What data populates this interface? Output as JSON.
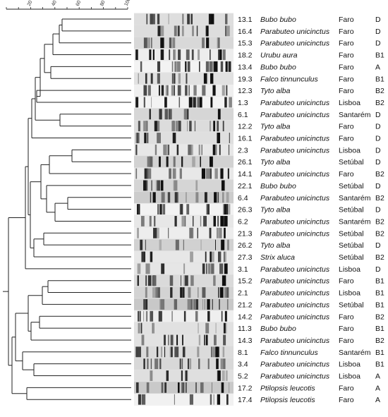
{
  "scale": {
    "ticks": [
      "20",
      "40",
      "60",
      "80",
      "100"
    ]
  },
  "isolates": [
    {
      "id": "13.1",
      "species": "Bubo bubo",
      "location": "Faro",
      "group": "D"
    },
    {
      "id": "16.4",
      "species": "Parabuteo unicinctus",
      "location": "Faro",
      "group": "D"
    },
    {
      "id": "15.3",
      "species": "Parabuteo unicinctus",
      "location": "Faro",
      "group": "D"
    },
    {
      "id": "18.2",
      "species": "Urubu aura",
      "location": "Faro",
      "group": "B1"
    },
    {
      "id": "13.4",
      "species": "Bubo bubo",
      "location": "Faro",
      "group": "A"
    },
    {
      "id": "19.3",
      "species": "Falco tinnunculus",
      "location": "Faro",
      "group": "B1"
    },
    {
      "id": "12.3",
      "species": "Tyto alba",
      "location": "Faro",
      "group": "B2"
    },
    {
      "id": "1.3",
      "species": "Parabuteo unicinctus",
      "location": "Lisboa",
      "group": "B2"
    },
    {
      "id": "6.1",
      "species": "Parabuteo unicinctus",
      "location": "Santarém",
      "group": "D"
    },
    {
      "id": "12.2",
      "species": "Tyto alba",
      "location": "Faro",
      "group": "D"
    },
    {
      "id": "16.1",
      "species": "Parabuteo unicinctus",
      "location": "Faro",
      "group": "D"
    },
    {
      "id": "2.3",
      "species": "Parabuteo unicinctus",
      "location": "Lisboa",
      "group": "D"
    },
    {
      "id": "26.1",
      "species": "Tyto alba",
      "location": "Setúbal",
      "group": "D"
    },
    {
      "id": "14.1",
      "species": "Parabuteo unicinctus",
      "location": "Faro",
      "group": "B2"
    },
    {
      "id": "22.1",
      "species": "Bubo bubo",
      "location": "Setúbal",
      "group": "D"
    },
    {
      "id": "6.4",
      "species": "Parabuteo unicinctus",
      "location": "Santarém",
      "group": "B2"
    },
    {
      "id": "26.3",
      "species": "Tyto alba",
      "location": "Setúbal",
      "group": "D"
    },
    {
      "id": "6.2",
      "species": "Parabuteo unicinctus",
      "location": "Santarém",
      "group": "B2"
    },
    {
      "id": "21.3",
      "species": "Parabuteo unicinctus",
      "location": "Setúbal",
      "group": "B2"
    },
    {
      "id": "26.2",
      "species": "Tyto alba",
      "location": "Setúbal",
      "group": "D"
    },
    {
      "id": "27.3",
      "species": "Strix aluca",
      "location": "Setúbal",
      "group": "B2"
    },
    {
      "id": "3.1",
      "species": "Parabuteo unicinctus",
      "location": "Lisboa",
      "group": "D"
    },
    {
      "id": "15.2",
      "species": "Parabuteo unicinctus",
      "location": "Faro",
      "group": "B1"
    },
    {
      "id": "2.1",
      "species": "Parabuteo unicinctus",
      "location": "Lisboa",
      "group": "B1"
    },
    {
      "id": "21.2",
      "species": "Parabuteo unicinctus",
      "location": "Setúbal",
      "group": "B1"
    },
    {
      "id": "14.2",
      "species": "Parabuteo unicinctus",
      "location": "Faro",
      "group": "B2"
    },
    {
      "id": "11.3",
      "species": "Bubo bubo",
      "location": "Faro",
      "group": "B1"
    },
    {
      "id": "14.3",
      "species": "Parabuteo unicinctus",
      "location": "Faro",
      "group": "B2"
    },
    {
      "id": "8.1",
      "species": "Falco tinnunculus",
      "location": "Santarém",
      "group": "B1"
    },
    {
      "id": "3.4",
      "species": "Parabuteo unicinctus",
      "location": "Lisboa",
      "group": "B1"
    },
    {
      "id": "5.2",
      "species": "Parabuteo unicinctus",
      "location": "Lisboa",
      "group": "A"
    },
    {
      "id": "17.2",
      "species": "Ptilopsis leucotis",
      "location": "Faro",
      "group": "A"
    },
    {
      "id": "17.4",
      "species": "Ptilopsis leucotis",
      "location": "Faro",
      "group": "A"
    }
  ],
  "colors": {
    "line": "#222222",
    "gel_bg": "#e2e2e2",
    "band_dark": "#111111"
  }
}
